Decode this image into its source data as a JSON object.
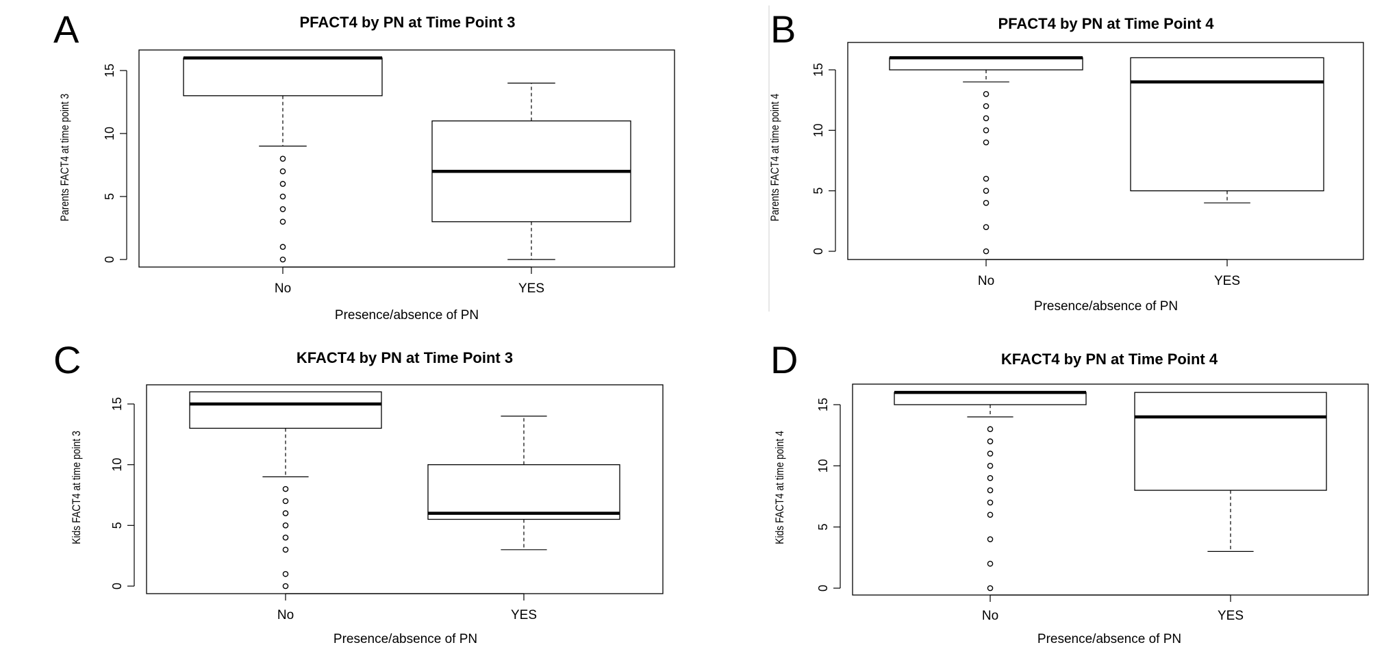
{
  "chart_data": [
    {
      "panel": "A",
      "type": "boxplot",
      "title": "PFACT4 by PN at Time Point 3",
      "xlabel": "Presence/absence of PN",
      "ylabel": "Parents FACT4 at time point 3",
      "categories": [
        "No",
        "YES"
      ],
      "ylim": [
        0,
        16
      ],
      "yticks": [
        0,
        5,
        10,
        15
      ],
      "boxes": [
        {
          "category": "No",
          "whisker_low": 9,
          "q1": 13,
          "median": 16,
          "q3": 16,
          "whisker_high": 16,
          "outliers": [
            8,
            7,
            6,
            5,
            4,
            3,
            1,
            0
          ]
        },
        {
          "category": "YES",
          "whisker_low": 0,
          "q1": 3,
          "median": 7,
          "q3": 11,
          "whisker_high": 14,
          "outliers": []
        }
      ]
    },
    {
      "panel": "B",
      "type": "boxplot",
      "title": "PFACT4 by PN at Time Point 4",
      "xlabel": "Presence/absence of PN",
      "ylabel": "Parents FACT4 at time point 4",
      "categories": [
        "No",
        "YES"
      ],
      "ylim": [
        0,
        16
      ],
      "yticks": [
        0,
        5,
        10,
        15
      ],
      "boxes": [
        {
          "category": "No",
          "whisker_low": 14,
          "q1": 15,
          "median": 16,
          "q3": 16,
          "whisker_high": 16,
          "outliers": [
            13,
            12,
            11,
            10,
            9,
            6,
            5,
            4,
            2,
            0
          ]
        },
        {
          "category": "YES",
          "whisker_low": 4,
          "q1": 5,
          "median": 14,
          "q3": 16,
          "whisker_high": 16,
          "outliers": []
        }
      ]
    },
    {
      "panel": "C",
      "type": "boxplot",
      "title": "KFACT4 by PN at Time Point 3",
      "xlabel": "Presence/absence of PN",
      "ylabel": "Kids FACT4 at time point 3",
      "categories": [
        "No",
        "YES"
      ],
      "ylim": [
        0,
        16
      ],
      "yticks": [
        0,
        5,
        10,
        15
      ],
      "boxes": [
        {
          "category": "No",
          "whisker_low": 9,
          "q1": 13,
          "median": 15,
          "q3": 16,
          "whisker_high": 16,
          "outliers": [
            8,
            7,
            6,
            5,
            4,
            3,
            1,
            0
          ]
        },
        {
          "category": "YES",
          "whisker_low": 3,
          "q1": 5.5,
          "median": 6,
          "q3": 10,
          "whisker_high": 14,
          "outliers": []
        }
      ]
    },
    {
      "panel": "D",
      "type": "boxplot",
      "title": "KFACT4 by PN at Time Point 4",
      "xlabel": "Presence/absence of PN",
      "ylabel": "Kids FACT4 at time point 4",
      "categories": [
        "No",
        "YES"
      ],
      "ylim": [
        0,
        16
      ],
      "yticks": [
        0,
        5,
        10,
        15
      ],
      "boxes": [
        {
          "category": "No",
          "whisker_low": 14,
          "q1": 15,
          "median": 16,
          "q3": 16,
          "whisker_high": 16,
          "outliers": [
            13,
            12,
            11,
            10,
            9,
            8,
            7,
            6,
            4,
            2,
            0
          ]
        },
        {
          "category": "YES",
          "whisker_low": 3,
          "q1": 8,
          "median": 14,
          "q3": 16,
          "whisker_high": 16,
          "outliers": []
        }
      ]
    }
  ]
}
